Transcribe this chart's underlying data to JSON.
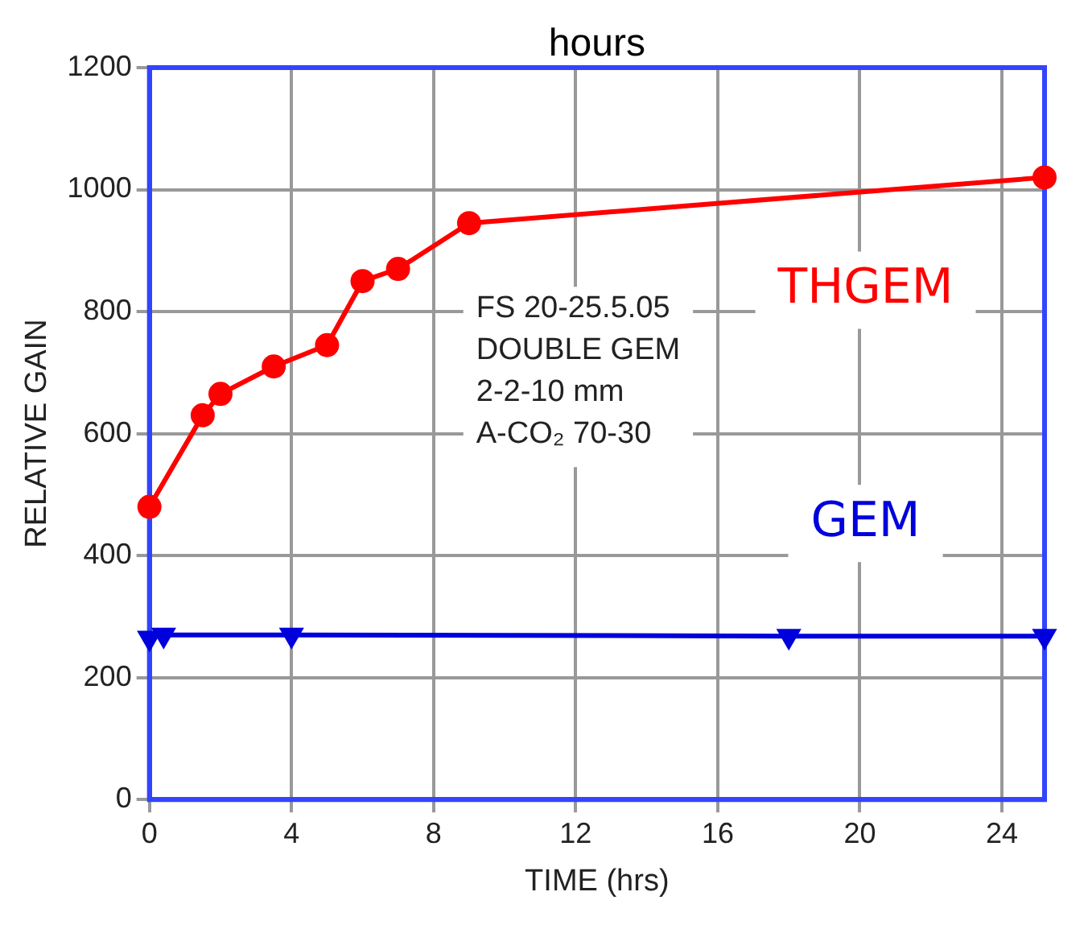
{
  "chart_data": {
    "type": "line",
    "xlabel": "TIME (hrs)",
    "ylabel": "RELATIVE GAIN",
    "annotations": [
      "hours",
      "FS 20-25.5.05",
      "DOUBLE GEM",
      "2-2-10 mm",
      "A-CO₂ 70-30"
    ],
    "xlim": [
      0,
      25.2
    ],
    "xticks": [
      0,
      4,
      8,
      12,
      16,
      20,
      24
    ],
    "ylim": [
      0,
      1200
    ],
    "yticks": [
      0,
      200,
      400,
      600,
      800,
      1000,
      1200
    ],
    "grid": true,
    "legend": false,
    "series": [
      {
        "name": "THGEM",
        "color": "#ff0000",
        "marker": "circle",
        "x": [
          0,
          1.5,
          2,
          3.5,
          5,
          6,
          7,
          9,
          25.2
        ],
        "values": [
          480,
          630,
          665,
          710,
          745,
          850,
          870,
          945,
          1020
        ]
      },
      {
        "name": "GEM",
        "color": "#0000dd",
        "marker": "triangle",
        "x": [
          0,
          0.4,
          4,
          18,
          25.2
        ],
        "values": [
          265,
          270,
          270,
          268,
          268
        ]
      }
    ]
  }
}
